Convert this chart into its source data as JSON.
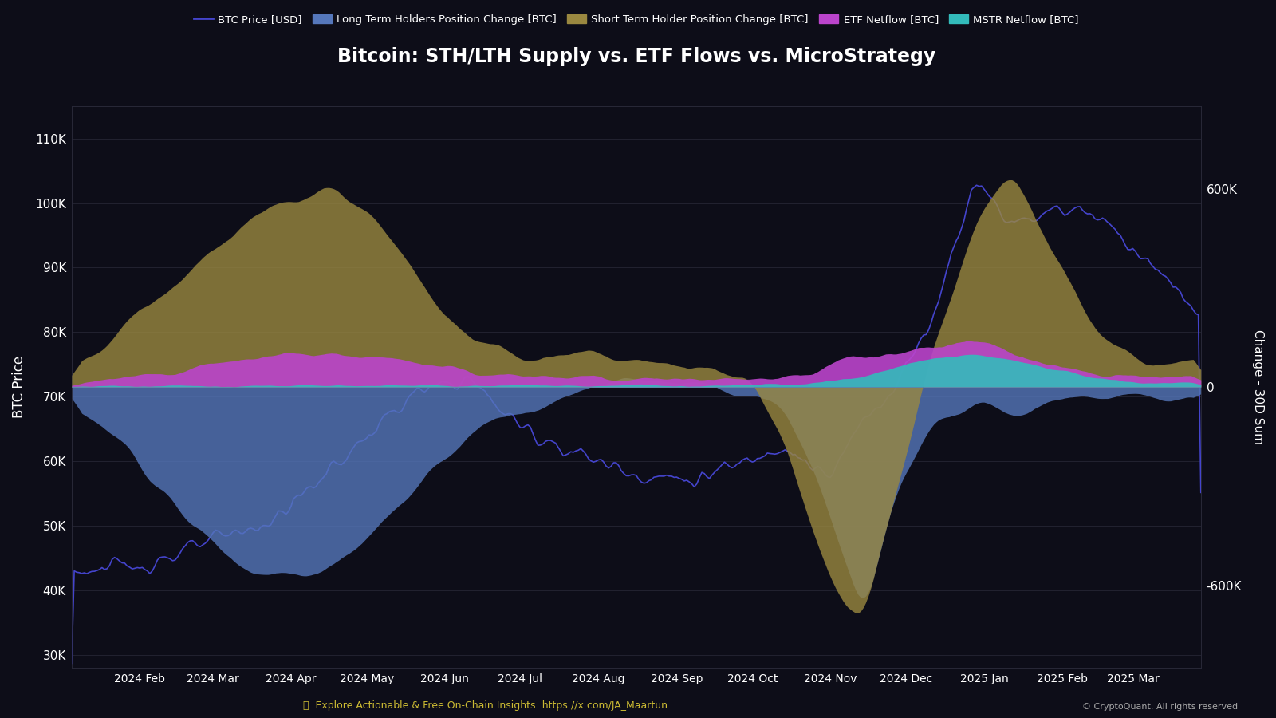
{
  "title": "Bitcoin: STH/LTH Supply vs. ETF Flows vs. MicroStrategy",
  "background_color": "#0d0d18",
  "text_color": "#ffffff",
  "grid_color": "#2a2a3a",
  "btc_price_color": "#4444cc",
  "lth_color": "#5577bb",
  "lth_alpha": 0.8,
  "sth_color": "#9a8840",
  "sth_alpha": 0.8,
  "etf_color": "#bb44cc",
  "etf_alpha": 0.9,
  "mstr_color": "#33bbbb",
  "mstr_alpha": 0.9,
  "ylabel_left": "BTC Price",
  "ylabel_right": "Change - 30D Sum",
  "yticks_left": [
    30000,
    40000,
    50000,
    60000,
    70000,
    80000,
    90000,
    100000,
    110000
  ],
  "ytick_labels_left": [
    "30K",
    "40K",
    "50K",
    "60K",
    "70K",
    "80K",
    "90K",
    "100K",
    "110K"
  ],
  "yticks_right": [
    -600000,
    0,
    600000
  ],
  "ytick_labels_right": [
    "-600K",
    "0",
    "600K"
  ],
  "annotation_text": "🟡  Explore Actionable & Free On-Chain Insights: https://x.com/JA_Maartun",
  "copyright_text": "© CryptoQuant. All rights reserved",
  "figsize": [
    16,
    9
  ],
  "dpi": 100
}
